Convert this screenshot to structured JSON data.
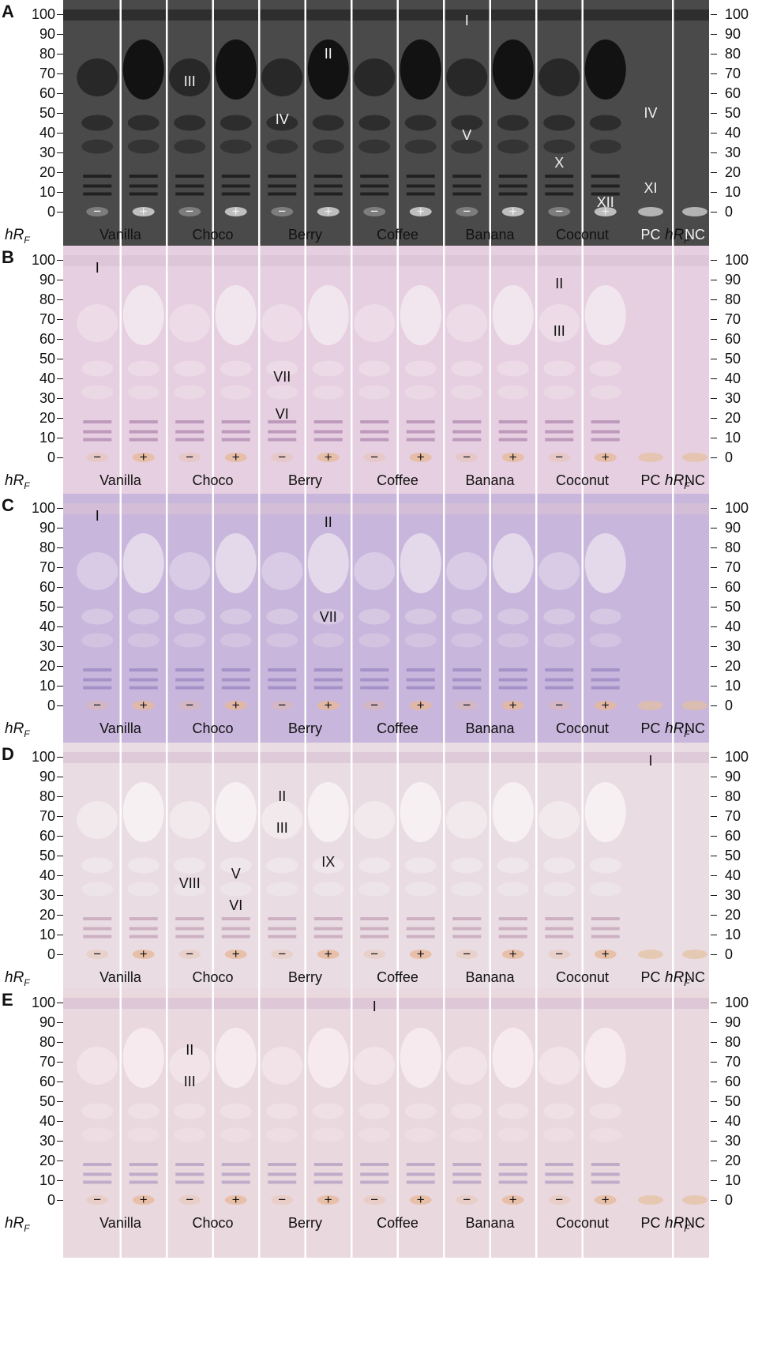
{
  "hrf_label": "hR",
  "hrf_sub": "F",
  "ticks": [
    "100",
    "90",
    "80",
    "70",
    "60",
    "50",
    "40",
    "30",
    "20",
    "10",
    "0"
  ],
  "lane_labels": [
    "Vanilla",
    "Choco",
    "Berry",
    "Coffee",
    "Banana",
    "Coconut",
    "PC",
    "NC"
  ],
  "signs": [
    "−",
    "+",
    "−",
    "+",
    "−",
    "+",
    "−",
    "+",
    "−",
    "+",
    "−",
    "+"
  ],
  "panels": [
    {
      "letter": "A",
      "theme": "dark",
      "bg": "#4a4a4a",
      "spot": "#0c0c0c",
      "band": "#1a1a1a",
      "text": "#f2f2f2",
      "labels": [
        {
          "t": "I",
          "lane": 8,
          "rf": 97
        },
        {
          "t": "III",
          "lane": 2,
          "rf": 66
        },
        {
          "t": "II",
          "lane": 5,
          "rf": 80
        },
        {
          "t": "IV",
          "lane": 4,
          "rf": 47
        },
        {
          "t": "V",
          "lane": 8,
          "rf": 39
        },
        {
          "t": "X",
          "lane": 10,
          "rf": 25
        },
        {
          "t": "IV",
          "lane": 12,
          "rf": 50
        },
        {
          "t": "XII",
          "lane": 11,
          "rf": 5
        },
        {
          "t": "XI",
          "lane": 12,
          "rf": 12
        }
      ]
    },
    {
      "letter": "B",
      "theme": "light",
      "bg": "#e6cfe0",
      "spot": "#f3e8ef",
      "band": "#b58fb5",
      "text": "#111",
      "labels": [
        {
          "t": "I",
          "lane": 0,
          "rf": 96
        },
        {
          "t": "II",
          "lane": 10,
          "rf": 88
        },
        {
          "t": "III",
          "lane": 10,
          "rf": 64
        },
        {
          "t": "VII",
          "lane": 4,
          "rf": 41
        },
        {
          "t": "VI",
          "lane": 4,
          "rf": 22
        }
      ]
    },
    {
      "letter": "C",
      "theme": "light",
      "bg": "#c8b6dc",
      "spot": "#e7dcec",
      "band": "#9d8cc4",
      "text": "#111",
      "labels": [
        {
          "t": "I",
          "lane": 0,
          "rf": 96
        },
        {
          "t": "II",
          "lane": 5,
          "rf": 93
        },
        {
          "t": "VII",
          "lane": 5,
          "rf": 45
        }
      ]
    },
    {
      "letter": "D",
      "theme": "light",
      "bg": "#e9dde3",
      "spot": "#f7f2f3",
      "band": "#c8a8bc",
      "text": "#111",
      "labels": [
        {
          "t": "I",
          "lane": 12,
          "rf": 98
        },
        {
          "t": "II",
          "lane": 4,
          "rf": 80
        },
        {
          "t": "III",
          "lane": 4,
          "rf": 64
        },
        {
          "t": "IX",
          "lane": 5,
          "rf": 47
        },
        {
          "t": "VIII",
          "lane": 2,
          "rf": 36
        },
        {
          "t": "V",
          "lane": 3,
          "rf": 41
        },
        {
          "t": "VI",
          "lane": 3,
          "rf": 25
        }
      ]
    },
    {
      "letter": "E",
      "theme": "light",
      "bg": "#ead8df",
      "spot": "#f7ecef",
      "band": "#b8a3c6",
      "text": "#111",
      "labels": [
        {
          "t": "I",
          "lane": 6,
          "rf": 98
        },
        {
          "t": "II",
          "lane": 2,
          "rf": 76
        },
        {
          "t": "III",
          "lane": 2,
          "rf": 60
        }
      ]
    }
  ]
}
